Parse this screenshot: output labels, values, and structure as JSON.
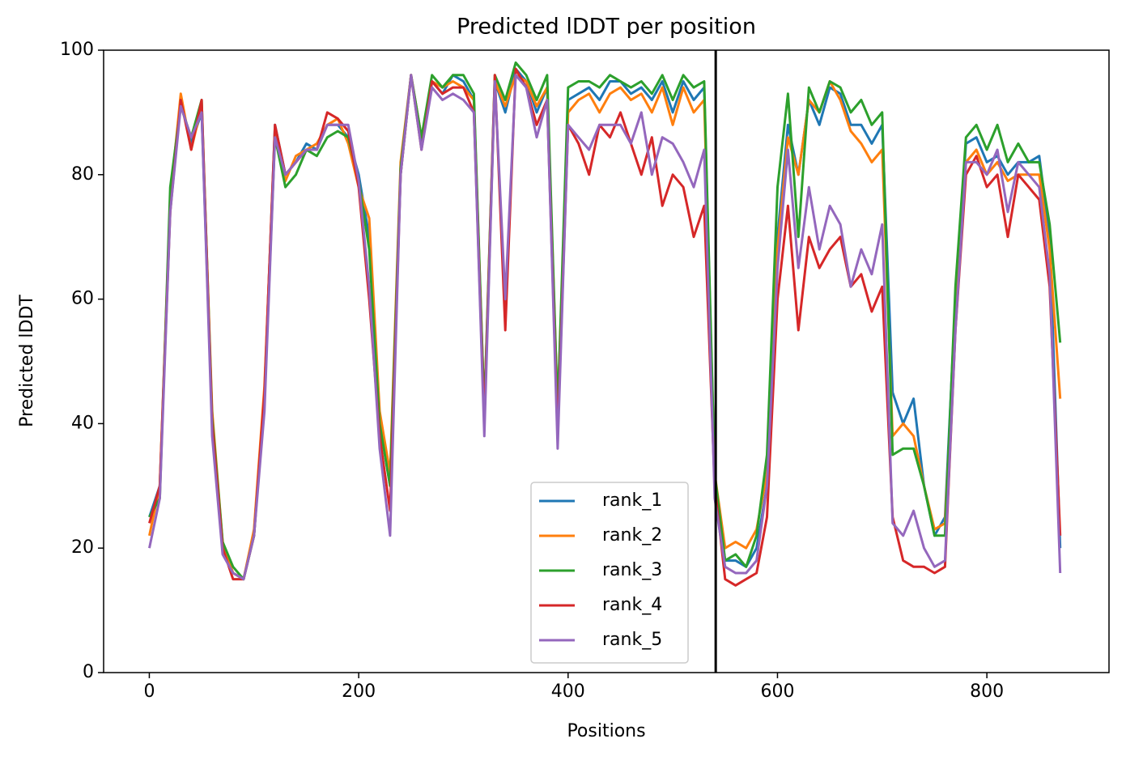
{
  "chart_data": {
    "type": "line",
    "title": "Predicted lDDT per position",
    "xlabel": "Positions",
    "ylabel": "Predicted lDDT",
    "x": [
      0,
      10,
      20,
      30,
      40,
      50,
      60,
      70,
      80,
      90,
      100,
      110,
      120,
      130,
      140,
      150,
      160,
      170,
      180,
      190,
      200,
      210,
      220,
      230,
      240,
      250,
      260,
      270,
      280,
      290,
      300,
      310,
      320,
      330,
      340,
      350,
      360,
      370,
      380,
      390,
      400,
      410,
      420,
      430,
      440,
      450,
      460,
      470,
      480,
      490,
      500,
      510,
      520,
      530,
      540,
      550,
      560,
      570,
      580,
      590,
      600,
      610,
      620,
      630,
      640,
      650,
      660,
      670,
      680,
      690,
      700,
      710,
      720,
      730,
      740,
      750,
      760,
      770,
      780,
      790,
      800,
      810,
      820,
      830,
      840,
      850,
      860,
      870
    ],
    "series": [
      {
        "name": "rank_1",
        "color": "#1f77b4",
        "values": [
          25,
          30,
          75,
          92,
          85,
          90,
          40,
          20,
          16,
          15,
          22,
          45,
          88,
          80,
          82,
          85,
          84,
          88,
          88,
          86,
          80,
          70,
          40,
          30,
          80,
          96,
          85,
          95,
          93,
          96,
          95,
          92,
          40,
          95,
          90,
          97,
          95,
          90,
          94,
          40,
          92,
          93,
          94,
          92,
          95,
          95,
          93,
          94,
          92,
          95,
          90,
          95,
          92,
          94,
          30,
          18,
          18,
          17,
          20,
          30,
          70,
          88,
          80,
          92,
          88,
          94,
          93,
          88,
          88,
          85,
          88,
          45,
          40,
          44,
          30,
          22,
          25,
          60,
          85,
          86,
          82,
          83,
          80,
          82,
          82,
          83,
          70,
          20
        ]
      },
      {
        "name": "rank_2",
        "color": "#ff7f0e",
        "values": [
          22,
          30,
          76,
          93,
          84,
          91,
          42,
          21,
          16,
          15,
          23,
          46,
          87,
          79,
          83,
          84,
          85,
          88,
          89,
          85,
          78,
          73,
          42,
          32,
          82,
          96,
          86,
          95,
          94,
          95,
          94,
          92,
          42,
          95,
          91,
          96,
          95,
          91,
          94,
          42,
          90,
          92,
          93,
          90,
          93,
          94,
          92,
          93,
          90,
          94,
          88,
          94,
          90,
          92,
          32,
          20,
          21,
          20,
          23,
          32,
          68,
          86,
          80,
          92,
          90,
          95,
          92,
          87,
          85,
          82,
          84,
          38,
          40,
          38,
          30,
          23,
          24,
          58,
          82,
          84,
          80,
          82,
          79,
          80,
          80,
          80,
          68,
          44
        ]
      },
      {
        "name": "rank_3",
        "color": "#2ca02c",
        "values": [
          25,
          28,
          78,
          91,
          86,
          92,
          41,
          21,
          17,
          15,
          22,
          44,
          86,
          78,
          80,
          84,
          83,
          86,
          87,
          86,
          79,
          68,
          40,
          30,
          81,
          96,
          86,
          96,
          94,
          96,
          96,
          93,
          42,
          96,
          92,
          98,
          96,
          92,
          96,
          42,
          94,
          95,
          95,
          94,
          96,
          95,
          94,
          95,
          93,
          96,
          92,
          96,
          94,
          95,
          32,
          18,
          19,
          17,
          22,
          35,
          78,
          93,
          70,
          94,
          90,
          95,
          94,
          90,
          92,
          88,
          90,
          35,
          36,
          36,
          30,
          22,
          22,
          62,
          86,
          88,
          84,
          88,
          82,
          85,
          82,
          82,
          72,
          53
        ]
      },
      {
        "name": "rank_4",
        "color": "#d62728",
        "values": [
          24,
          30,
          74,
          92,
          84,
          92,
          40,
          20,
          15,
          15,
          22,
          45,
          88,
          80,
          82,
          84,
          84,
          90,
          89,
          87,
          78,
          60,
          38,
          26,
          80,
          96,
          84,
          95,
          93,
          94,
          94,
          90,
          40,
          96,
          55,
          97,
          94,
          88,
          92,
          38,
          88,
          85,
          80,
          88,
          86,
          90,
          85,
          80,
          86,
          75,
          80,
          78,
          70,
          75,
          30,
          15,
          14,
          15,
          16,
          25,
          60,
          75,
          55,
          70,
          65,
          68,
          70,
          62,
          64,
          58,
          62,
          25,
          18,
          17,
          17,
          16,
          17,
          55,
          80,
          83,
          78,
          80,
          70,
          80,
          78,
          76,
          62,
          22
        ]
      },
      {
        "name": "rank_5",
        "color": "#9467bd",
        "values": [
          20,
          28,
          74,
          91,
          86,
          90,
          38,
          19,
          16,
          15,
          22,
          42,
          86,
          80,
          82,
          84,
          84,
          88,
          88,
          88,
          79,
          62,
          36,
          22,
          80,
          96,
          84,
          94,
          92,
          93,
          92,
          90,
          38,
          95,
          60,
          96,
          94,
          86,
          92,
          36,
          88,
          86,
          84,
          88,
          88,
          88,
          85,
          90,
          80,
          86,
          85,
          82,
          78,
          84,
          28,
          17,
          16,
          16,
          18,
          30,
          65,
          84,
          65,
          78,
          68,
          75,
          72,
          62,
          68,
          64,
          72,
          24,
          22,
          26,
          20,
          17,
          18,
          55,
          82,
          82,
          80,
          84,
          74,
          82,
          80,
          78,
          64,
          16
        ]
      }
    ],
    "vlines": [
      541
    ],
    "xlim": [
      -43.65,
      916.65
    ],
    "ylim": [
      0,
      100
    ],
    "xticks": [
      0,
      200,
      400,
      600,
      800
    ],
    "yticks": [
      0,
      20,
      40,
      60,
      80,
      100
    ],
    "legend": "lower center"
  }
}
